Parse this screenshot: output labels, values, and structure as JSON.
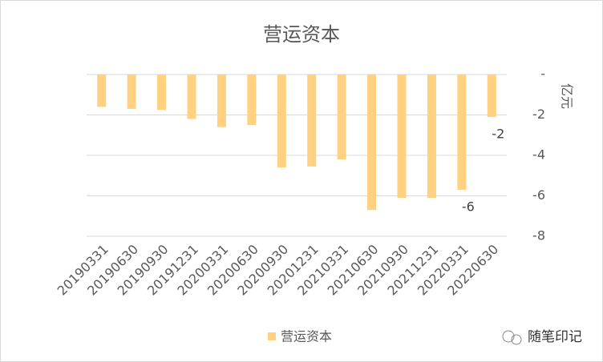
{
  "chart_data": {
    "type": "bar",
    "title": "营运资本",
    "y_label": "亿元",
    "categories": [
      "20190331",
      "20190630",
      "20190930",
      "20191231",
      "20200331",
      "20200630",
      "20200930",
      "20201231",
      "20210331",
      "20210630",
      "20210930",
      "20211231",
      "20220331",
      "20220630"
    ],
    "series": [
      {
        "name": "营运资本",
        "color": "#ffd181",
        "values": [
          -1.6,
          -1.7,
          -1.75,
          -2.2,
          -2.6,
          -2.5,
          -4.6,
          -4.55,
          -4.2,
          -6.7,
          -6.1,
          -6.1,
          -5.7,
          -2.1
        ],
        "value_labels": [
          null,
          null,
          null,
          null,
          null,
          null,
          null,
          null,
          null,
          null,
          null,
          null,
          "-6",
          "-2"
        ]
      }
    ],
    "ylim": [
      -8,
      0
    ],
    "yticks": [
      {
        "value": 0,
        "label": "-"
      },
      -2,
      -4,
      -6,
      -8
    ],
    "grid": true,
    "legend": "bottom"
  },
  "watermark": "随笔印记"
}
